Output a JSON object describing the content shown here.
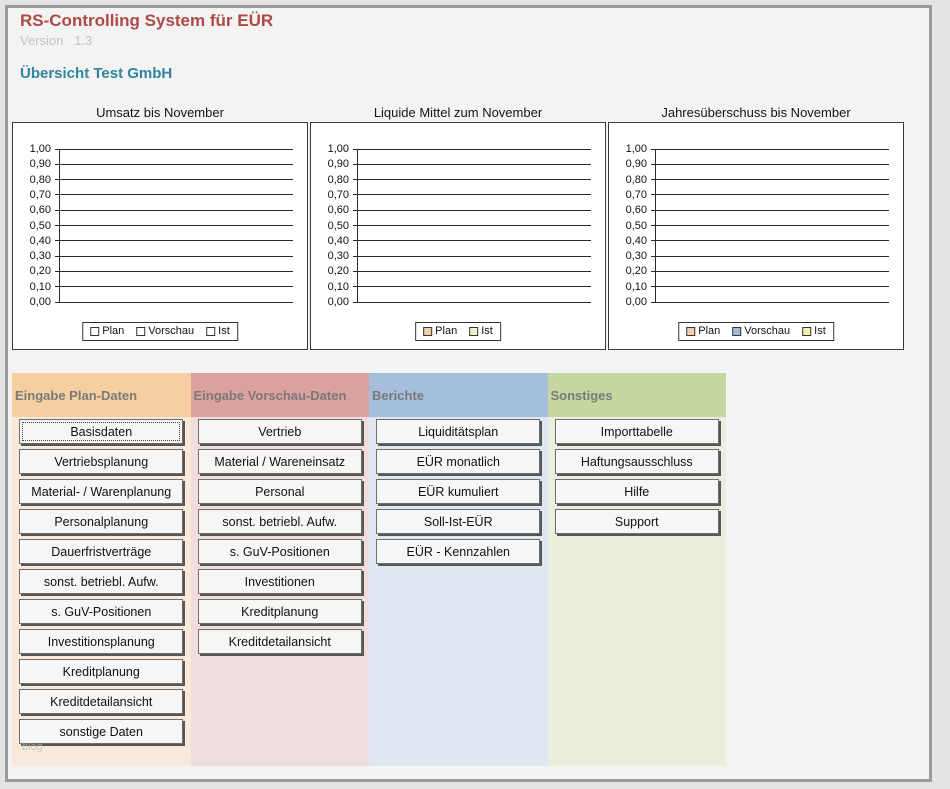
{
  "page": {
    "title": "RS-Controlling System für EÜR",
    "version_label": "Version   1.3",
    "subtitle": "Übersicht Test GmbH",
    "watermark": "blog"
  },
  "colors": {
    "title_red": "#ad4a47",
    "subtitle_teal": "#31859c",
    "panel_border": "#9a9a9a",
    "panel_bg": "#f3f3f3"
  },
  "chart_data": [
    {
      "type": "bar",
      "title": "Umsatz bis November",
      "categories": [],
      "series": [
        {
          "name": "Plan",
          "values": [],
          "color": "#ffffff"
        },
        {
          "name": "Vorschau",
          "values": [],
          "color": "#ffffff"
        },
        {
          "name": "Ist",
          "values": [],
          "color": "#ffffff"
        }
      ],
      "ylim": [
        0,
        1
      ],
      "yticks": [
        "1,00",
        "0,90",
        "0,80",
        "0,70",
        "0,60",
        "0,50",
        "0,40",
        "0,30",
        "0,20",
        "0,10",
        "0,00"
      ],
      "grid": true,
      "legend_position": "bottom"
    },
    {
      "type": "bar",
      "title": "Liquide Mittel zum November",
      "categories": [],
      "series": [
        {
          "name": "Plan",
          "values": [],
          "color": "#f2cfa8"
        },
        {
          "name": "Ist",
          "values": [],
          "color": "#eef0c8"
        }
      ],
      "ylim": [
        0,
        1
      ],
      "yticks": [
        "1,00",
        "0,90",
        "0,80",
        "0,70",
        "0,60",
        "0,50",
        "0,40",
        "0,30",
        "0,20",
        "0,10",
        "0,00"
      ],
      "grid": true,
      "legend_position": "bottom"
    },
    {
      "type": "bar",
      "title": "Jahresüberschuss bis November",
      "categories": [],
      "series": [
        {
          "name": "Plan",
          "values": [],
          "color": "#f2cfa8"
        },
        {
          "name": "Vorschau",
          "values": [],
          "color": "#a3badc"
        },
        {
          "name": "Ist",
          "values": [],
          "color": "#f2f2b0"
        }
      ],
      "ylim": [
        0,
        1
      ],
      "yticks": [
        "1,00",
        "0,90",
        "0,80",
        "0,70",
        "0,60",
        "0,50",
        "0,40",
        "0,30",
        "0,20",
        "0,10",
        "0,00"
      ],
      "grid": true,
      "legend_position": "bottom"
    }
  ],
  "sections": [
    {
      "header": "Eingabe Plan-Daten",
      "header_bg": "#f5cf9f",
      "body_bg": "#f8e9da",
      "focused_button": "Basisdaten",
      "buttons": [
        "Basisdaten",
        "Vertriebsplanung",
        "Material- / Warenplanung",
        "Personalplanung",
        "Dauerfristverträge",
        "sonst. betriebl. Aufw.",
        "s. GuV-Positionen",
        "Investitionsplanung",
        "Kreditplanung",
        "Kreditdetailansicht",
        "sonstige Daten"
      ]
    },
    {
      "header": "Eingabe Vorschau-Daten",
      "header_bg": "#dca09e",
      "body_bg": "#f1dddd",
      "focused_button": "",
      "buttons": [
        "Vertrieb",
        "Material / Wareneinsatz",
        "Personal",
        "sonst. betriebl. Aufw.",
        "s. GuV-Positionen",
        "Investitionen",
        "Kreditplanung",
        "Kreditdetailansicht"
      ]
    },
    {
      "header": "Berichte",
      "header_bg": "#a5bedb",
      "body_bg": "#dfe7f2",
      "focused_button": "",
      "buttons": [
        "Liquiditätsplan",
        "EÜR monatlich",
        "EÜR kumuliert",
        "Soll-Ist-EÜR",
        "EÜR - Kennzahlen"
      ]
    },
    {
      "header": "Sonstiges",
      "header_bg": "#c6d69f",
      "body_bg": "#e9efdc",
      "focused_button": "",
      "buttons": [
        "Importtabelle",
        "Haftungsausschluss",
        "Hilfe",
        "Support"
      ]
    }
  ]
}
